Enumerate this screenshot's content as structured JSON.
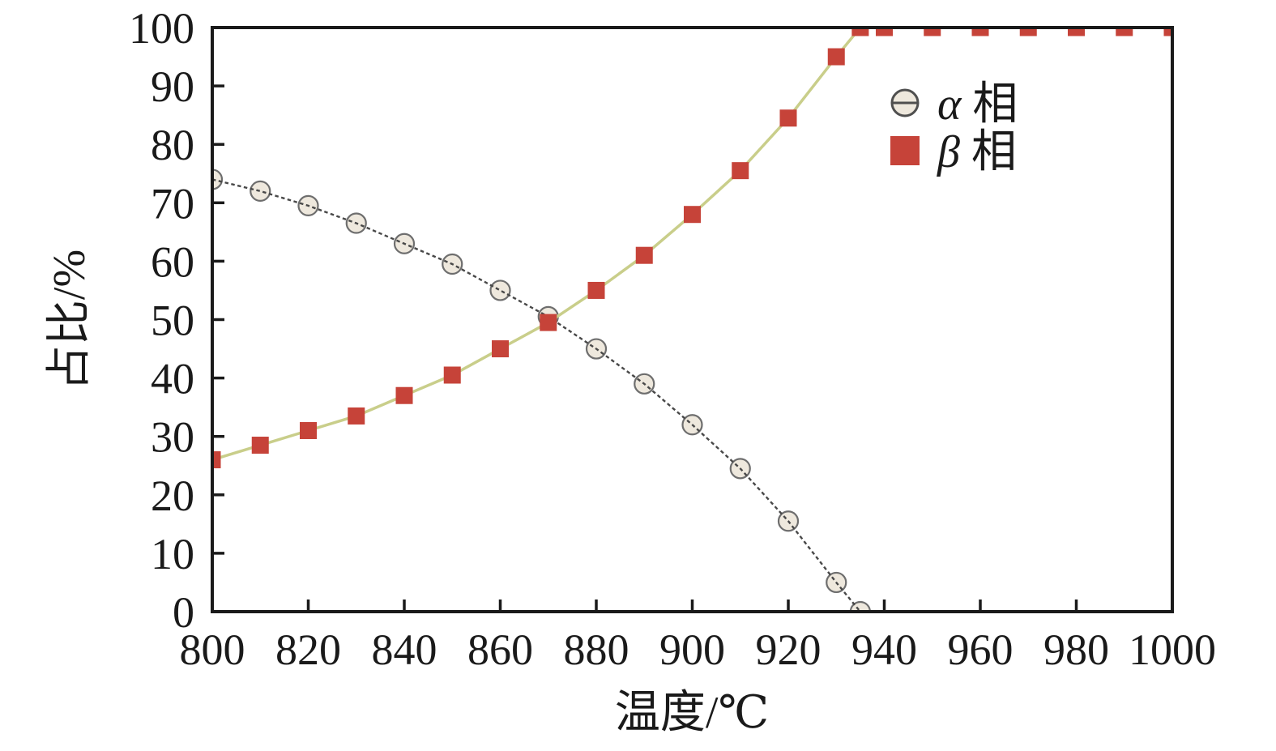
{
  "chart_data": {
    "type": "line",
    "title": "",
    "xlabel": "温度/℃",
    "ylabel": "占比/%",
    "xlim": [
      800,
      1000
    ],
    "ylim": [
      0,
      100
    ],
    "x_ticks": [
      800,
      820,
      840,
      860,
      880,
      900,
      920,
      940,
      960,
      980,
      1000
    ],
    "y_ticks": [
      0,
      10,
      20,
      30,
      40,
      50,
      60,
      70,
      80,
      90,
      100
    ],
    "grid": false,
    "legend_position": "upper-right-inside",
    "axis_color": "#1a1a1a",
    "series": [
      {
        "name": "α 相",
        "marker": "open-circle-slash",
        "line_style": "dashed",
        "line_color": "#484848",
        "marker_fill": "#eee8dd",
        "marker_stroke": "#6e6e6e",
        "x": [
          800,
          810,
          820,
          830,
          840,
          850,
          860,
          870,
          880,
          890,
          900,
          910,
          920,
          930,
          935
        ],
        "y": [
          74,
          72,
          69.5,
          66.5,
          63,
          59.5,
          55,
          50.5,
          45,
          39,
          32,
          24.5,
          15.5,
          5,
          0
        ]
      },
      {
        "name": "β 相",
        "marker": "filled-square",
        "line_style": "solid",
        "line_color": "#c9ce8a",
        "marker_fill": "#c64339",
        "marker_stroke": "none",
        "x": [
          800,
          810,
          820,
          830,
          840,
          850,
          860,
          870,
          880,
          890,
          900,
          910,
          920,
          930,
          935,
          940,
          950,
          960,
          970,
          980,
          990,
          1000
        ],
        "y": [
          26,
          28.5,
          31,
          33.5,
          37,
          40.5,
          45,
          49.5,
          55,
          61,
          68,
          75.5,
          84.5,
          95,
          100,
          100,
          100,
          100,
          100,
          100,
          100,
          100
        ]
      }
    ]
  }
}
